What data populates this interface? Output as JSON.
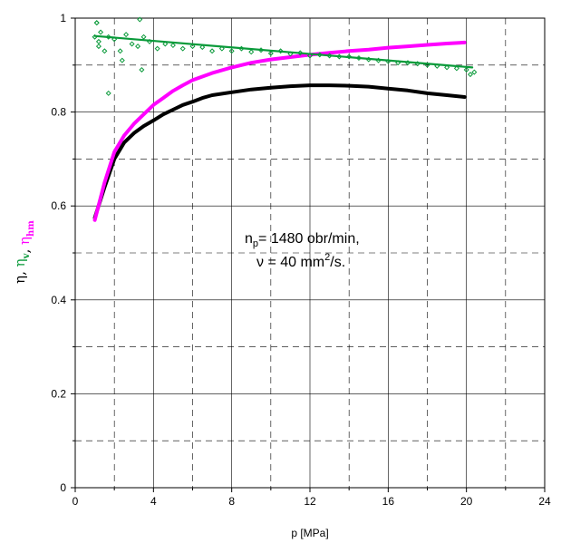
{
  "chart_data": {
    "type": "line",
    "xlabel": "p [MPa]",
    "xlim": [
      0,
      24
    ],
    "ylim": [
      0,
      1
    ],
    "x_ticks": [
      "0",
      "4",
      "8",
      "12",
      "16",
      "20",
      "24"
    ],
    "y_ticks": [
      "0",
      "0.2",
      "0.4",
      "0.6",
      "0.8",
      "1"
    ],
    "grid": "dashed, every 2 MPa and every 0.1",
    "ylabel_parts": [
      {
        "text": "η",
        "sub": "",
        "color": "#000000"
      },
      {
        "text": "η",
        "sub": "v",
        "color": "#0a9a3a"
      },
      {
        "text": "η",
        "sub": "hm",
        "color": "#ff00ff"
      }
    ],
    "annotation": {
      "line1": {
        "pre": "n",
        "sub": "p",
        "post": "= 1480 obr/min,"
      },
      "line2": {
        "pre": "ν = 40 mm",
        "sup": "2",
        "post": "/s."
      }
    },
    "series": [
      {
        "color": "#000000",
        "style": "thick-line",
        "x": [
          1.0,
          1.5,
          2.0,
          2.5,
          3.0,
          3.5,
          4.0,
          4.5,
          5.0,
          5.5,
          6.0,
          6.5,
          7.0,
          8.0,
          9.0,
          10.0,
          11.0,
          12.0,
          13.0,
          14.0,
          15.0,
          16.0,
          17.0,
          18.0,
          19.0,
          19.9
        ],
        "y": [
          0.575,
          0.64,
          0.7,
          0.735,
          0.755,
          0.77,
          0.782,
          0.795,
          0.805,
          0.815,
          0.822,
          0.83,
          0.836,
          0.842,
          0.848,
          0.852,
          0.855,
          0.857,
          0.857,
          0.856,
          0.854,
          0.85,
          0.846,
          0.84,
          0.836,
          0.832
        ]
      },
      {
        "color": "#ff00ff",
        "style": "thick-line",
        "x": [
          1.0,
          1.5,
          2.0,
          2.5,
          3.0,
          3.5,
          4.0,
          4.5,
          5.0,
          5.5,
          6.0,
          7.0,
          8.0,
          9.0,
          10.0,
          11.0,
          12.0,
          13.0,
          14.0,
          15.0,
          16.0,
          17.0,
          18.0,
          19.0,
          19.9
        ],
        "y": [
          0.57,
          0.65,
          0.715,
          0.75,
          0.775,
          0.795,
          0.815,
          0.83,
          0.845,
          0.857,
          0.868,
          0.883,
          0.895,
          0.905,
          0.912,
          0.917,
          0.922,
          0.926,
          0.93,
          0.933,
          0.937,
          0.94,
          0.943,
          0.946,
          0.948
        ]
      },
      {
        "color": "#0a9a3a",
        "style": "trend-line",
        "x": [
          1.0,
          20.3
        ],
        "y": [
          0.962,
          0.895
        ]
      },
      {
        "color": "#0a9a3a",
        "style": "diamond-markers",
        "x": [
          1.0,
          1.1,
          1.2,
          1.3,
          1.5,
          1.7,
          2.0,
          2.3,
          2.6,
          2.9,
          3.2,
          3.3,
          3.5,
          3.8,
          4.2,
          4.6,
          5.0,
          5.5,
          6.0,
          6.5,
          7.0,
          7.5,
          8.0,
          8.5,
          9.0,
          9.5,
          10.0,
          10.5,
          11.0,
          11.5,
          12.0,
          12.5,
          13.0,
          13.5,
          14.0,
          14.5,
          15.0,
          15.5,
          16.0,
          16.5,
          17.0,
          17.5,
          18.0,
          18.5,
          19.0,
          19.5,
          20.0,
          20.2,
          20.4,
          1.7,
          2.4,
          3.4,
          1.1,
          1.2
        ],
        "y": [
          0.96,
          0.99,
          0.95,
          0.97,
          0.93,
          0.96,
          0.955,
          0.93,
          0.965,
          0.945,
          0.94,
          0.997,
          0.96,
          0.95,
          0.935,
          0.945,
          0.942,
          0.935,
          0.94,
          0.938,
          0.93,
          0.935,
          0.93,
          0.935,
          0.928,
          0.932,
          0.925,
          0.93,
          0.924,
          0.926,
          0.92,
          0.922,
          0.92,
          0.918,
          0.918,
          0.915,
          0.912,
          0.91,
          0.908,
          0.905,
          0.905,
          0.903,
          0.9,
          0.898,
          0.895,
          0.893,
          0.89,
          0.88,
          0.885,
          0.84,
          0.91,
          0.89,
          0.99,
          0.94
        ]
      }
    ]
  }
}
